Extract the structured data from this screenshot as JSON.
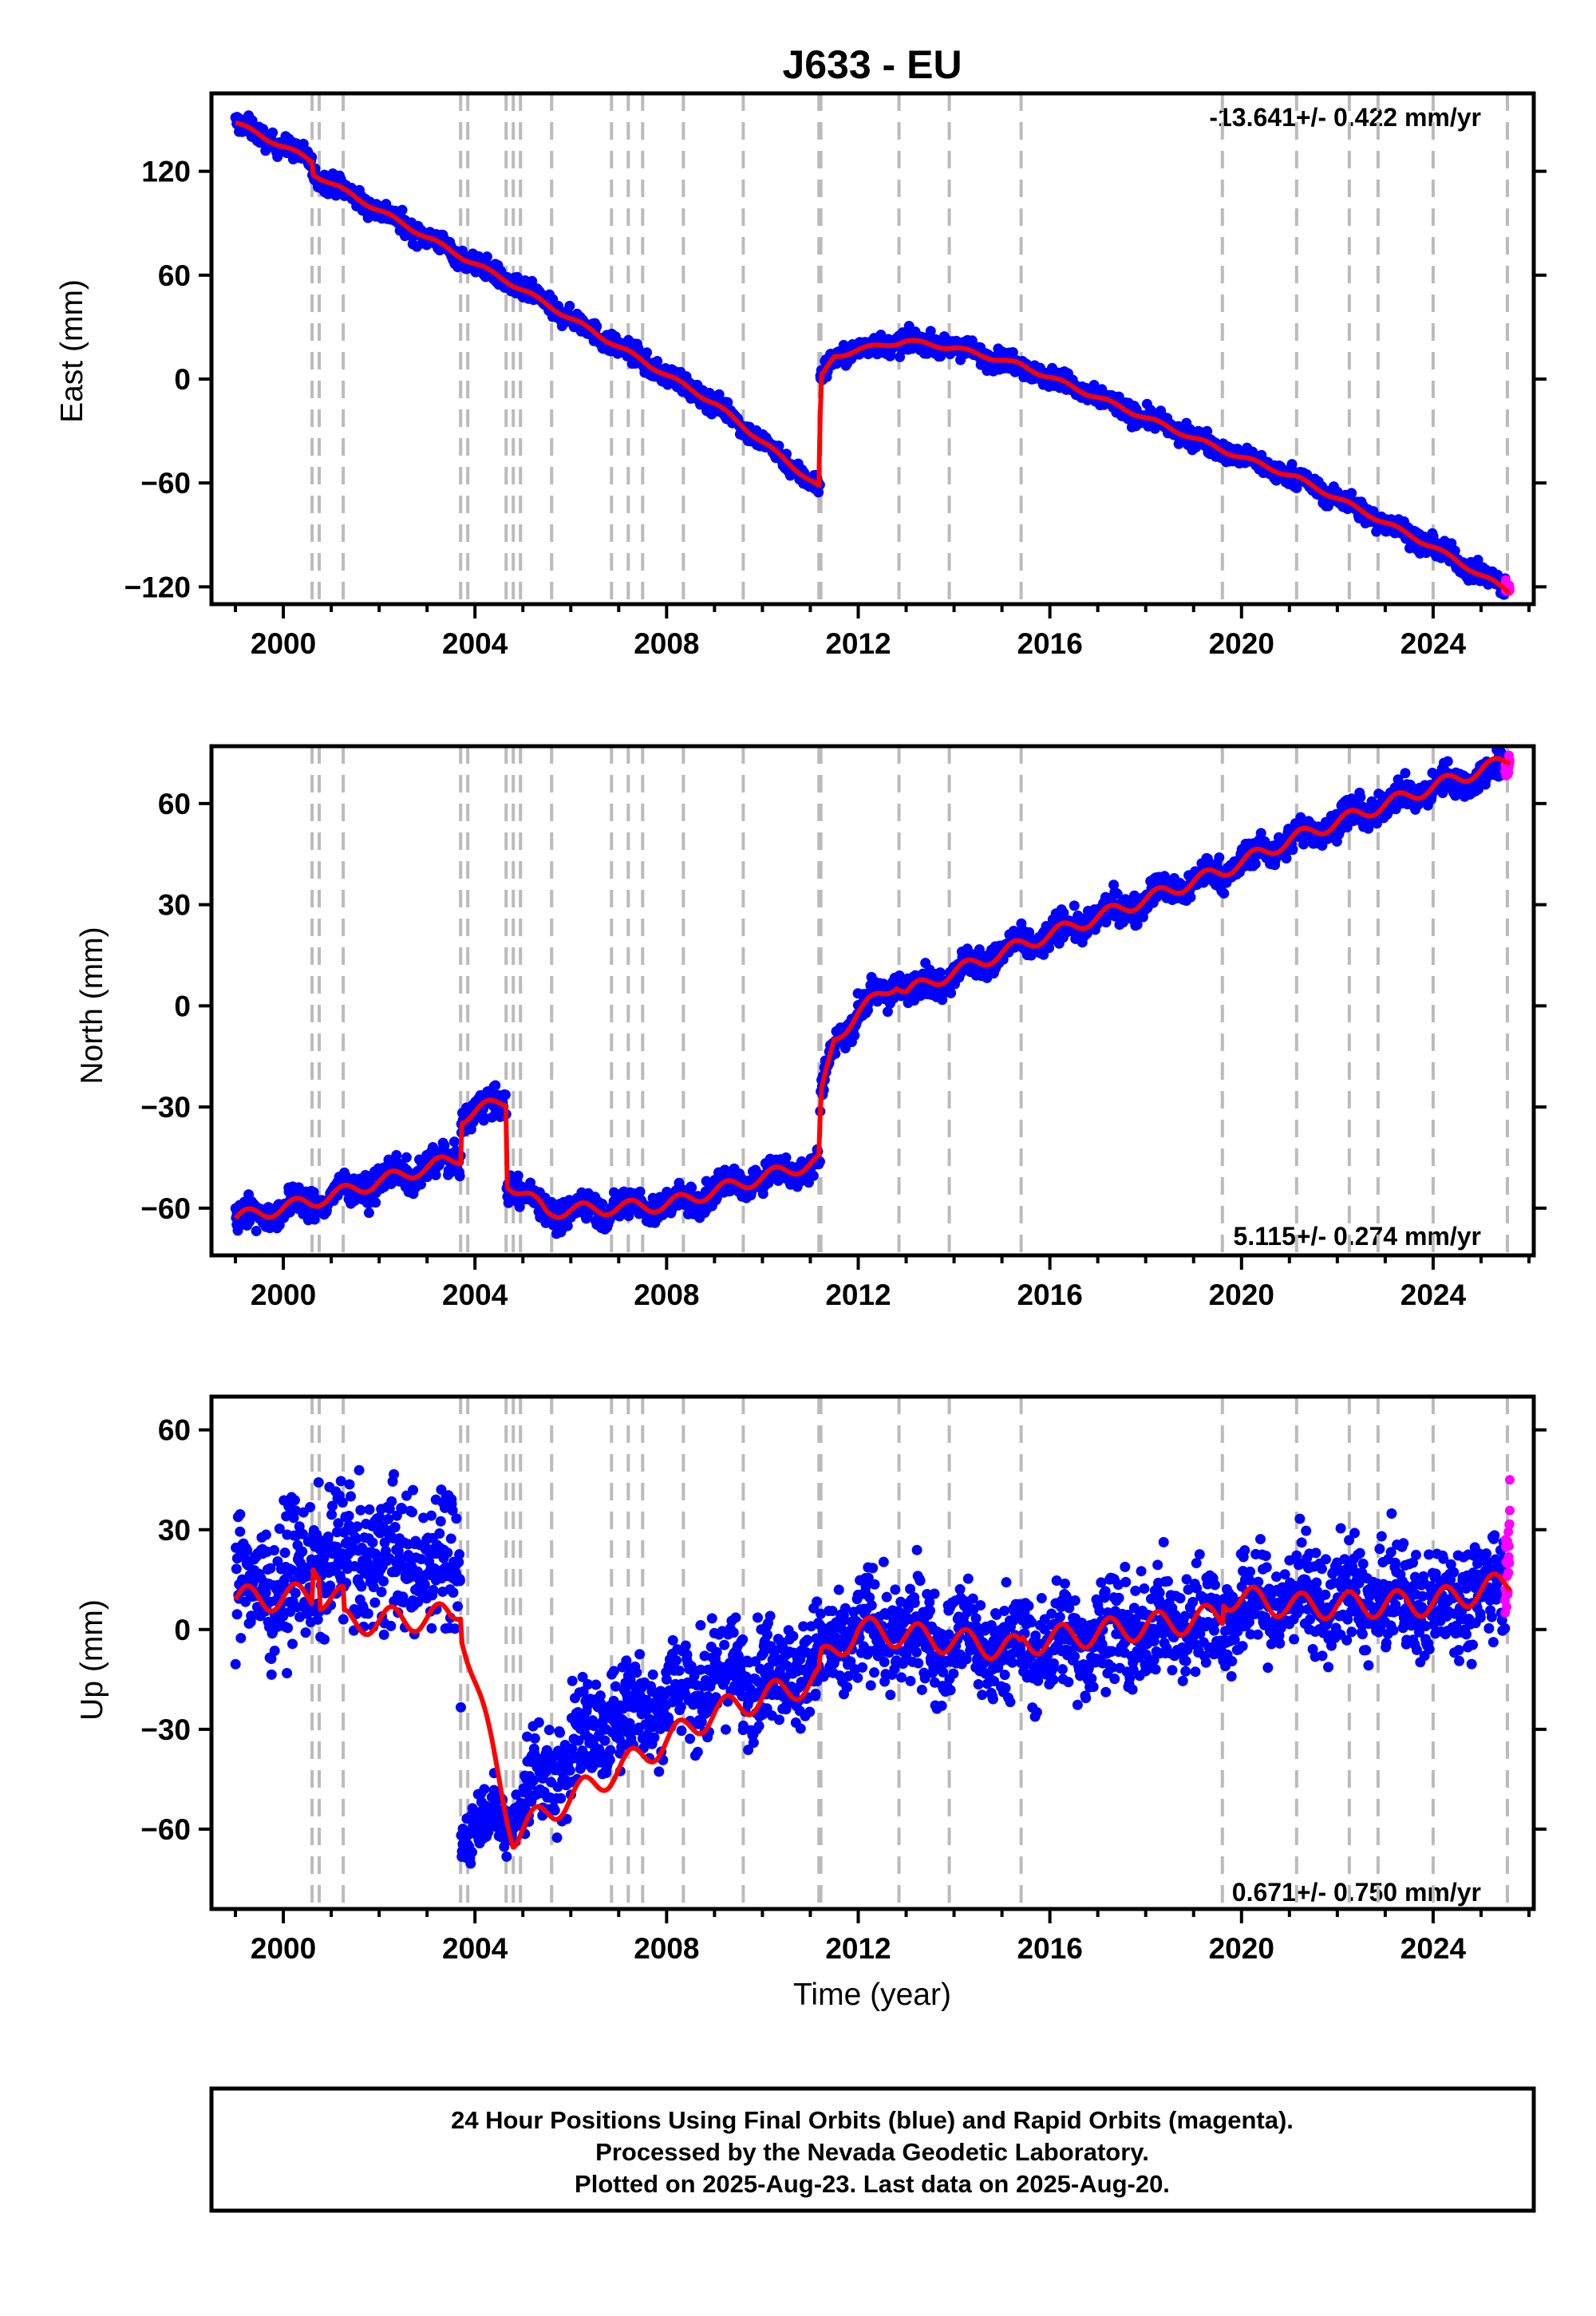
{
  "title": "J633 - EU",
  "xlabel": "Time (year)",
  "x_tick_labels": [
    "2000",
    "2004",
    "2008",
    "2012",
    "2016",
    "2020",
    "2024"
  ],
  "footer_lines": [
    "24 Hour Positions Using Final Orbits (blue) and Rapid Orbits (magenta).",
    "Processed by the Nevada Geodetic Laboratory.",
    "Plotted on 2025-Aug-23. Last data on 2025-Aug-20."
  ],
  "colors": {
    "final": "#0000ff",
    "rapid": "#ff00ff",
    "model": "#ff0000",
    "step_lines": "#bbbbbb",
    "frame": "#000000"
  },
  "chart_data": [
    {
      "type": "scatter",
      "panel": "east",
      "ylabel": "East (mm)",
      "y_tick_labels": [
        "120",
        "60",
        "0",
        "−60",
        "−120"
      ],
      "y_tick_values": [
        120,
        60,
        0,
        -60,
        -120
      ],
      "rate_text": "-13.641+/- 0.422 mm/yr",
      "rate_position": "top-right",
      "xlim": [
        1998.5,
        2026.1
      ],
      "ylim": [
        -130,
        165
      ],
      "grid": false,
      "step_epochs": [
        2000.6,
        2000.75,
        2001.25,
        2003.7,
        2003.85,
        2004.65,
        2004.8,
        2004.95,
        2005.6,
        2006.85,
        2007.2,
        2007.5,
        2008.35,
        2009.6,
        2011.18,
        2011.22,
        2012.85,
        2013.9,
        2015.4,
        2019.6,
        2021.15,
        2022.25,
        2022.85,
        2024.0,
        2025.55
      ],
      "series": [
        {
          "role": "model",
          "x": [
            1999.0,
            2000.6,
            2000.61,
            2003.7,
            2004.65,
            2009.0,
            2011.2,
            2011.21,
            2011.5,
            2012.0,
            2013.0,
            2014.0,
            2015.4,
            2019.6,
            2021.15,
            2024.0,
            2025.6
          ],
          "y": [
            148,
            126,
            119,
            71,
            57,
            -14,
            -63,
            0,
            13,
            17,
            22,
            18,
            8,
            -41,
            -57,
            -97,
            -123
          ]
        },
        {
          "role": "final",
          "x": [
            1999.0,
            2000.6,
            2000.61,
            2003.7,
            2004.65,
            2009.0,
            2011.2,
            2011.21,
            2011.5,
            2012.0,
            2013.0,
            2014.0,
            2015.4,
            2019.6,
            2021.15,
            2024.0,
            2025.5
          ],
          "y": [
            148,
            126,
            119,
            71,
            57,
            -14,
            -63,
            0,
            13,
            17,
            22,
            18,
            8,
            -41,
            -57,
            -97,
            -121
          ],
          "scatter_mm": 4
        },
        {
          "role": "rapid",
          "x": [
            2025.5,
            2025.6
          ],
          "y": [
            -119,
            -123
          ],
          "scatter_mm": 3
        }
      ]
    },
    {
      "type": "scatter",
      "panel": "north",
      "ylabel": "North (mm)",
      "y_tick_labels": [
        "60",
        "30",
        "0",
        "−30",
        "−60"
      ],
      "y_tick_values": [
        60,
        30,
        0,
        -30,
        -60
      ],
      "rate_text": "5.115+/- 0.274 mm/yr",
      "rate_position": "bottom-right",
      "xlim": [
        1998.5,
        2026.1
      ],
      "ylim": [
        -74,
        77
      ],
      "grid": false,
      "step_epochs": [
        2000.6,
        2000.75,
        2001.25,
        2003.7,
        2003.85,
        2004.65,
        2004.8,
        2004.95,
        2005.6,
        2006.85,
        2007.2,
        2007.5,
        2008.35,
        2009.6,
        2011.18,
        2011.22,
        2012.85,
        2013.9,
        2015.4,
        2019.6,
        2021.15,
        2022.25,
        2022.85,
        2024.0,
        2025.55
      ],
      "series": [
        {
          "role": "model",
          "x": [
            1999.0,
            2000.6,
            2003.7,
            2003.71,
            2004.65,
            2004.66,
            2005.5,
            2008.0,
            2011.2,
            2011.21,
            2011.5,
            2012.0,
            2012.8,
            2013.0,
            2014.0,
            2015.4,
            2019.6,
            2021.15,
            2024.0,
            2025.6
          ],
          "y": [
            -63,
            -58,
            -45,
            -33,
            -28,
            -52,
            -61,
            -59,
            -46,
            -28,
            -10,
            -2,
            7,
            4,
            10,
            18,
            40,
            50,
            65,
            73
          ],
          "seasonal_mm": 2
        },
        {
          "role": "final",
          "x": [
            1999.0,
            2000.6,
            2003.7,
            2003.71,
            2004.65,
            2004.66,
            2005.5,
            2008.0,
            2011.2,
            2011.21,
            2011.5,
            2012.0,
            2012.8,
            2013.0,
            2014.0,
            2015.4,
            2019.6,
            2021.15,
            2024.0,
            2025.5
          ],
          "y": [
            -63,
            -58,
            -45,
            -33,
            -28,
            -52,
            -61,
            -59,
            -46,
            -28,
            -10,
            -2,
            7,
            4,
            10,
            18,
            40,
            50,
            65,
            70
          ],
          "scatter_mm": 3
        },
        {
          "role": "rapid",
          "x": [
            2025.5,
            2025.6
          ],
          "y": [
            70,
            75
          ],
          "scatter_mm": 2
        }
      ]
    },
    {
      "type": "scatter",
      "panel": "up",
      "ylabel": "Up (mm)",
      "y_tick_labels": [
        "60",
        "30",
        "0",
        "−30",
        "−60"
      ],
      "y_tick_values": [
        60,
        30,
        0,
        -30,
        -60
      ],
      "rate_text": "0.671+/- 0.750 mm/yr",
      "rate_position": "bottom-right",
      "xlim": [
        1998.5,
        2026.1
      ],
      "ylim": [
        -84,
        70
      ],
      "grid": false,
      "step_epochs": [
        2000.6,
        2000.75,
        2001.25,
        2003.7,
        2003.85,
        2004.65,
        2004.8,
        2004.95,
        2005.6,
        2006.85,
        2007.2,
        2007.5,
        2008.35,
        2009.6,
        2011.18,
        2011.22,
        2012.85,
        2013.9,
        2015.4,
        2019.6,
        2021.15,
        2022.25,
        2022.85,
        2024.0,
        2025.55
      ],
      "series": [
        {
          "role": "model",
          "x": [
            1999.0,
            2000.6,
            2000.61,
            2000.75,
            2000.76,
            2001.25,
            2001.26,
            2003.5,
            2003.7,
            2003.71,
            2004.8,
            2005.5,
            2007.0,
            2009.0,
            2011.2,
            2011.21,
            2012.0,
            2015.4,
            2015.41,
            2019.6,
            2019.61,
            2021.15,
            2024.0,
            2025.6
          ],
          "y": [
            9,
            10,
            21,
            19,
            10,
            9,
            2,
            4,
            7,
            1,
            -62,
            -55,
            -42,
            -25,
            -15,
            -10,
            0,
            -6,
            -4,
            4,
            10,
            7,
            8,
            14
          ],
          "seasonal_mm": 4
        },
        {
          "role": "final",
          "x": [
            1999.0,
            2000.6,
            2000.61,
            2003.7,
            2003.71,
            2004.8,
            2005.5,
            2007.0,
            2009.0,
            2011.2,
            2012.0,
            2015.4,
            2019.6,
            2021.15,
            2024.0,
            2025.5
          ],
          "y": [
            13,
            16,
            22,
            20,
            -60,
            -55,
            -42,
            -25,
            -15,
            -10,
            0,
            -6,
            4,
            10,
            8,
            14
          ],
          "scatter_mm": 11
        },
        {
          "role": "rapid",
          "x": [
            2025.5,
            2025.6
          ],
          "y": [
            15,
            45
          ],
          "scatter_mm": 10
        }
      ]
    }
  ]
}
